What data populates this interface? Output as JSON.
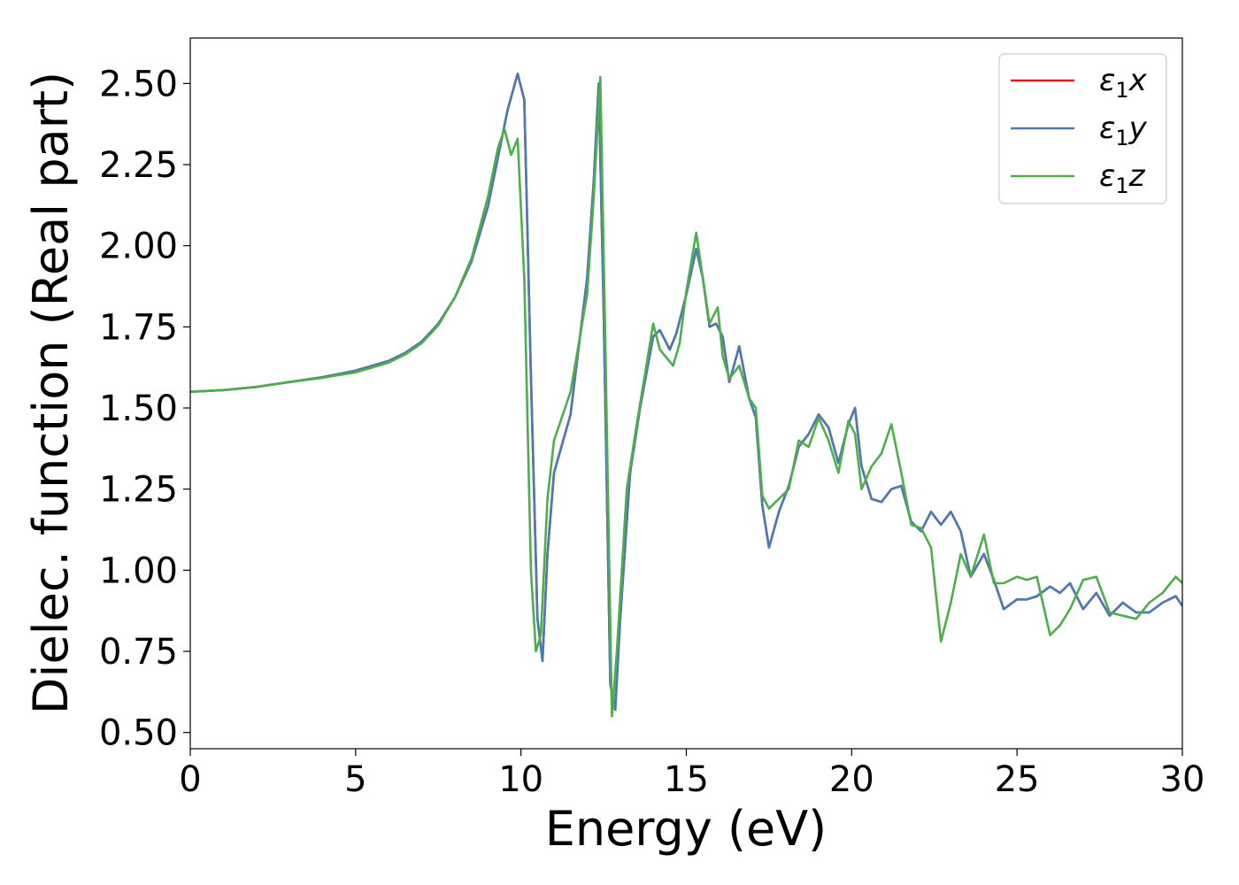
{
  "chart_data": {
    "type": "line",
    "title": "",
    "xlabel": "Energy (eV)",
    "ylabel": "Dielec. function (Real part)",
    "xlim": [
      0,
      30
    ],
    "ylim": [
      0.45,
      2.64
    ],
    "xticks": [
      0,
      5,
      10,
      15,
      20,
      25,
      30
    ],
    "yticks": [
      0.5,
      0.75,
      1.0,
      1.25,
      1.5,
      1.75,
      2.0,
      2.25,
      2.5
    ],
    "ytick_labels": [
      "0.50",
      "0.75",
      "1.00",
      "1.25",
      "1.50",
      "1.75",
      "2.00",
      "2.25",
      "2.50"
    ],
    "grid": false,
    "legend_position": "top-right",
    "series": [
      {
        "name": "ε₁x",
        "legend_base": "ε",
        "legend_sub": "1",
        "legend_suffix": "x",
        "color": "#e41a1c",
        "x": [
          0,
          1,
          2,
          3,
          4,
          5,
          6,
          6.5,
          7,
          7.5,
          8,
          8.5,
          9,
          9.3,
          9.6,
          9.9,
          10.1,
          10.3,
          10.5,
          10.65,
          10.8,
          11,
          11.5,
          12,
          12.2,
          12.35,
          12.5,
          12.7,
          12.85,
          13,
          13.3,
          13.6,
          14,
          14.2,
          14.5,
          14.7,
          15,
          15.3,
          15.5,
          15.7,
          15.9,
          16.1,
          16.3,
          16.6,
          16.9,
          17.1,
          17.3,
          17.5,
          17.8,
          18.1,
          18.4,
          18.7,
          19,
          19.3,
          19.6,
          19.9,
          20.1,
          20.3,
          20.6,
          20.9,
          21.2,
          21.5,
          21.8,
          22.1,
          22.4,
          22.7,
          23,
          23.3,
          23.6,
          24,
          24.3,
          24.6,
          25,
          25.3,
          25.6,
          26,
          26.3,
          26.6,
          27,
          27.4,
          27.8,
          28.2,
          28.6,
          29,
          29.4,
          29.8,
          30
        ],
        "y": [
          1.55,
          1.555,
          1.565,
          1.58,
          1.595,
          1.615,
          1.645,
          1.67,
          1.705,
          1.76,
          1.84,
          1.95,
          2.12,
          2.27,
          2.42,
          2.53,
          2.45,
          1.6,
          0.85,
          0.72,
          1.05,
          1.3,
          1.48,
          1.9,
          2.2,
          2.5,
          1.8,
          0.65,
          0.57,
          0.85,
          1.3,
          1.5,
          1.72,
          1.74,
          1.68,
          1.73,
          1.85,
          1.99,
          1.9,
          1.75,
          1.76,
          1.72,
          1.58,
          1.69,
          1.53,
          1.47,
          1.2,
          1.07,
          1.18,
          1.26,
          1.38,
          1.42,
          1.48,
          1.44,
          1.33,
          1.45,
          1.5,
          1.32,
          1.22,
          1.21,
          1.25,
          1.26,
          1.15,
          1.12,
          1.18,
          1.14,
          1.18,
          1.12,
          0.98,
          1.05,
          0.97,
          0.88,
          0.91,
          0.91,
          0.92,
          0.95,
          0.93,
          0.96,
          0.88,
          0.93,
          0.86,
          0.9,
          0.87,
          0.87,
          0.9,
          0.92,
          0.89
        ]
      },
      {
        "name": "ε₁y",
        "legend_base": "ε",
        "legend_sub": "1",
        "legend_suffix": "y",
        "color": "#4a7bb7",
        "x": [
          0,
          1,
          2,
          3,
          4,
          5,
          6,
          6.5,
          7,
          7.5,
          8,
          8.5,
          9,
          9.3,
          9.6,
          9.9,
          10.1,
          10.3,
          10.5,
          10.65,
          10.8,
          11,
          11.5,
          12,
          12.2,
          12.35,
          12.5,
          12.7,
          12.85,
          13,
          13.3,
          13.6,
          14,
          14.2,
          14.5,
          14.7,
          15,
          15.3,
          15.5,
          15.7,
          15.9,
          16.1,
          16.3,
          16.6,
          16.9,
          17.1,
          17.3,
          17.5,
          17.8,
          18.1,
          18.4,
          18.7,
          19,
          19.3,
          19.6,
          19.9,
          20.1,
          20.3,
          20.6,
          20.9,
          21.2,
          21.5,
          21.8,
          22.1,
          22.4,
          22.7,
          23,
          23.3,
          23.6,
          24,
          24.3,
          24.6,
          25,
          25.3,
          25.6,
          26,
          26.3,
          26.6,
          27,
          27.4,
          27.8,
          28.2,
          28.6,
          29,
          29.4,
          29.8,
          30
        ],
        "y": [
          1.55,
          1.555,
          1.565,
          1.58,
          1.595,
          1.615,
          1.645,
          1.67,
          1.705,
          1.76,
          1.84,
          1.95,
          2.12,
          2.27,
          2.42,
          2.53,
          2.45,
          1.6,
          0.85,
          0.72,
          1.05,
          1.3,
          1.48,
          1.9,
          2.2,
          2.5,
          1.8,
          0.65,
          0.57,
          0.85,
          1.3,
          1.5,
          1.72,
          1.74,
          1.68,
          1.73,
          1.85,
          1.99,
          1.9,
          1.75,
          1.76,
          1.72,
          1.58,
          1.69,
          1.53,
          1.47,
          1.2,
          1.07,
          1.18,
          1.26,
          1.38,
          1.42,
          1.48,
          1.44,
          1.33,
          1.45,
          1.5,
          1.32,
          1.22,
          1.21,
          1.25,
          1.26,
          1.15,
          1.12,
          1.18,
          1.14,
          1.18,
          1.12,
          0.98,
          1.05,
          0.97,
          0.88,
          0.91,
          0.91,
          0.92,
          0.95,
          0.93,
          0.96,
          0.88,
          0.93,
          0.86,
          0.9,
          0.87,
          0.87,
          0.9,
          0.92,
          0.89
        ]
      },
      {
        "name": "ε₁z",
        "legend_base": "ε",
        "legend_sub": "1",
        "legend_suffix": "z",
        "color": "#4daf4a",
        "x": [
          0,
          1,
          2,
          3,
          4,
          5,
          6,
          6.5,
          7,
          7.5,
          8,
          8.5,
          9,
          9.3,
          9.5,
          9.7,
          9.9,
          10.1,
          10.3,
          10.45,
          10.6,
          10.8,
          11,
          11.5,
          12,
          12.2,
          12.4,
          12.55,
          12.75,
          12.9,
          13.2,
          13.5,
          14,
          14.2,
          14.6,
          14.8,
          15,
          15.3,
          15.5,
          15.7,
          15.95,
          16.1,
          16.3,
          16.6,
          16.9,
          17.1,
          17.3,
          17.5,
          17.8,
          18.1,
          18.4,
          18.7,
          19,
          19.3,
          19.6,
          19.9,
          20.1,
          20.3,
          20.6,
          20.9,
          21.2,
          21.5,
          21.8,
          22.1,
          22.4,
          22.7,
          23,
          23.3,
          23.6,
          24,
          24.3,
          24.6,
          25,
          25.3,
          25.6,
          26,
          26.3,
          26.6,
          27,
          27.4,
          27.8,
          28.2,
          28.6,
          29,
          29.4,
          29.8,
          30
        ],
        "y": [
          1.55,
          1.555,
          1.565,
          1.58,
          1.593,
          1.61,
          1.64,
          1.665,
          1.7,
          1.755,
          1.84,
          1.96,
          2.15,
          2.3,
          2.36,
          2.28,
          2.33,
          1.9,
          1.0,
          0.75,
          0.8,
          1.22,
          1.4,
          1.55,
          1.85,
          2.15,
          2.52,
          1.7,
          0.55,
          0.75,
          1.25,
          1.45,
          1.76,
          1.68,
          1.63,
          1.7,
          1.86,
          2.04,
          1.9,
          1.76,
          1.81,
          1.66,
          1.59,
          1.63,
          1.53,
          1.5,
          1.23,
          1.19,
          1.22,
          1.25,
          1.4,
          1.38,
          1.47,
          1.4,
          1.3,
          1.46,
          1.42,
          1.25,
          1.32,
          1.36,
          1.45,
          1.3,
          1.14,
          1.13,
          1.07,
          0.78,
          0.9,
          1.05,
          0.98,
          1.11,
          0.96,
          0.96,
          0.98,
          0.97,
          0.98,
          0.8,
          0.83,
          0.88,
          0.97,
          0.98,
          0.87,
          0.86,
          0.85,
          0.9,
          0.93,
          0.98,
          0.96
        ]
      }
    ]
  }
}
